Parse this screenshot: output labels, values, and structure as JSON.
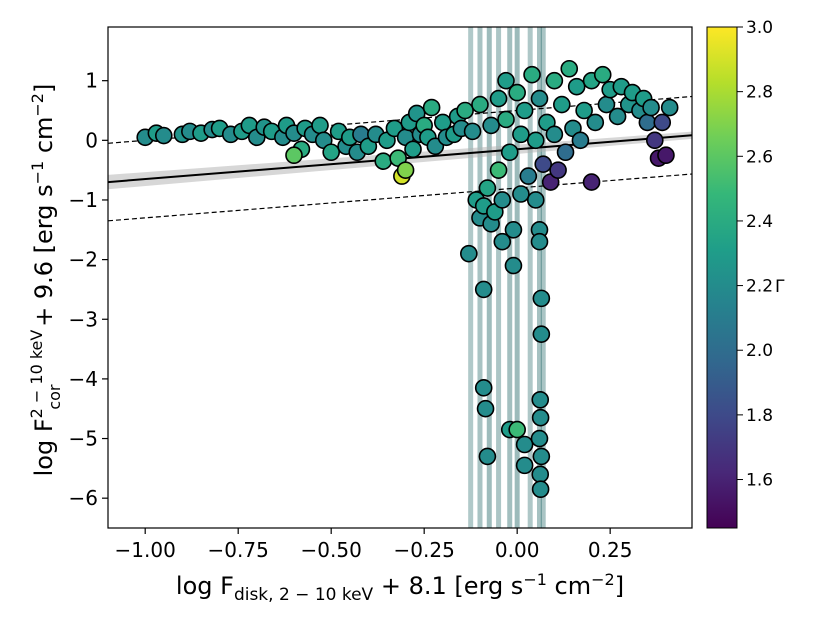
{
  "chart_data": {
    "type": "scatter",
    "xlabel": "log F_disk, 2−10 keV + 8.1  [erg s⁻¹ cm⁻²]",
    "ylabel": "log F_cor^2−10 keV + 9.6  [erg s⁻¹ cm⁻²]",
    "xlim": [
      -1.1,
      0.47
    ],
    "ylim": [
      -6.5,
      1.9
    ],
    "x_ticks": [
      -1.0,
      -0.75,
      -0.5,
      -0.25,
      0.0,
      0.25
    ],
    "x_tick_labels": [
      "−1.00",
      "−0.75",
      "−0.50",
      "−0.25",
      "0.00",
      "0.25"
    ],
    "y_ticks": [
      1,
      0,
      -1,
      -2,
      -3,
      -4,
      -5,
      -6
    ],
    "y_tick_labels": [
      "1",
      "0",
      "−1",
      "−2",
      "−3",
      "−4",
      "−5",
      "−6"
    ],
    "colorbar": {
      "label": "Γ",
      "cmap": "viridis",
      "range": [
        1.45,
        3.0
      ],
      "ticks": [
        3.0,
        2.8,
        2.6,
        2.4,
        2.2,
        2.0,
        1.8,
        1.6
      ],
      "tick_labels": [
        "3.0",
        "2.8",
        "2.6",
        "2.4",
        "2.2",
        "2.0",
        "1.8",
        "1.6"
      ],
      "stops": [
        "#440154",
        "#482878",
        "#3e4989",
        "#31688e",
        "#26828e",
        "#1f9e89",
        "#35b779",
        "#6ece58",
        "#b5de2b",
        "#fde725"
      ]
    },
    "fit_line": {
      "intercept": -0.15,
      "slope": 0.5,
      "color": "#000000"
    },
    "bound_lines": [
      {
        "intercept": 0.5,
        "slope": 0.5,
        "style": "dashed"
      },
      {
        "intercept": -0.8,
        "slope": 0.5,
        "style": "dashed"
      }
    ],
    "points": [
      {
        "x": -1.0,
        "y": 0.05,
        "g": 2.2
      },
      {
        "x": -0.97,
        "y": 0.12,
        "g": 2.3
      },
      {
        "x": -0.95,
        "y": 0.08,
        "g": 2.2
      },
      {
        "x": -0.9,
        "y": 0.1,
        "g": 2.25
      },
      {
        "x": -0.88,
        "y": 0.15,
        "g": 2.2
      },
      {
        "x": -0.85,
        "y": 0.12,
        "g": 2.3
      },
      {
        "x": -0.82,
        "y": 0.18,
        "g": 2.2
      },
      {
        "x": -0.8,
        "y": 0.2,
        "g": 2.3
      },
      {
        "x": -0.77,
        "y": 0.1,
        "g": 2.2
      },
      {
        "x": -0.74,
        "y": 0.15,
        "g": 2.3
      },
      {
        "x": -0.72,
        "y": 0.25,
        "g": 2.3
      },
      {
        "x": -0.7,
        "y": 0.05,
        "g": 2.2
      },
      {
        "x": -0.68,
        "y": 0.22,
        "g": 2.25
      },
      {
        "x": -0.66,
        "y": 0.15,
        "g": 2.3
      },
      {
        "x": -0.63,
        "y": 0.05,
        "g": 2.2
      },
      {
        "x": -0.62,
        "y": 0.25,
        "g": 2.3
      },
      {
        "x": -0.6,
        "y": 0.12,
        "g": 2.2
      },
      {
        "x": -0.58,
        "y": -0.15,
        "g": 2.4
      },
      {
        "x": -0.6,
        "y": -0.25,
        "g": 2.6
      },
      {
        "x": -0.57,
        "y": 0.2,
        "g": 2.3
      },
      {
        "x": -0.55,
        "y": 0.1,
        "g": 2.2
      },
      {
        "x": -0.53,
        "y": 0.25,
        "g": 2.3
      },
      {
        "x": -0.52,
        "y": 0.0,
        "g": 2.2
      },
      {
        "x": -0.5,
        "y": -0.2,
        "g": 2.35
      },
      {
        "x": -0.48,
        "y": 0.15,
        "g": 2.3
      },
      {
        "x": -0.46,
        "y": -0.1,
        "g": 2.2
      },
      {
        "x": -0.45,
        "y": 0.05,
        "g": 2.3
      },
      {
        "x": -0.43,
        "y": -0.2,
        "g": 2.2
      },
      {
        "x": -0.42,
        "y": 0.1,
        "g": 2.1
      },
      {
        "x": -0.4,
        "y": -0.1,
        "g": 2.3
      },
      {
        "x": -0.38,
        "y": 0.1,
        "g": 2.2
      },
      {
        "x": -0.36,
        "y": -0.35,
        "g": 2.4
      },
      {
        "x": -0.35,
        "y": 0.0,
        "g": 2.3
      },
      {
        "x": -0.33,
        "y": 0.2,
        "g": 2.3
      },
      {
        "x": -0.32,
        "y": -0.3,
        "g": 2.5
      },
      {
        "x": -0.31,
        "y": -0.6,
        "g": 2.9
      },
      {
        "x": -0.3,
        "y": -0.5,
        "g": 2.7
      },
      {
        "x": -0.3,
        "y": 0.05,
        "g": 2.2
      },
      {
        "x": -0.29,
        "y": 0.3,
        "g": 2.3
      },
      {
        "x": -0.28,
        "y": -0.15,
        "g": 2.3
      },
      {
        "x": -0.27,
        "y": 0.45,
        "g": 2.25
      },
      {
        "x": -0.26,
        "y": 0.1,
        "g": 2.2
      },
      {
        "x": -0.25,
        "y": 0.25,
        "g": 2.4
      },
      {
        "x": -0.24,
        "y": 0.05,
        "g": 2.3
      },
      {
        "x": -0.23,
        "y": 0.55,
        "g": 2.4
      },
      {
        "x": -0.22,
        "y": -0.1,
        "g": 2.2
      },
      {
        "x": -0.2,
        "y": 0.3,
        "g": 2.3
      },
      {
        "x": -0.19,
        "y": 0.05,
        "g": 2.2
      },
      {
        "x": -0.17,
        "y": 0.1,
        "g": 2.3
      },
      {
        "x": -0.16,
        "y": 0.4,
        "g": 2.3
      },
      {
        "x": -0.15,
        "y": 0.2,
        "g": 2.2
      },
      {
        "x": -0.14,
        "y": 0.5,
        "g": 2.4
      },
      {
        "x": -0.12,
        "y": 0.15,
        "g": 2.2
      },
      {
        "x": -0.11,
        "y": -1.0,
        "g": 2.3
      },
      {
        "x": -0.1,
        "y": -1.3,
        "g": 2.2
      },
      {
        "x": -0.1,
        "y": 0.6,
        "g": 2.4
      },
      {
        "x": -0.09,
        "y": -1.1,
        "g": 2.3
      },
      {
        "x": -0.08,
        "y": -0.8,
        "g": 2.35
      },
      {
        "x": -0.07,
        "y": 0.25,
        "g": 2.2
      },
      {
        "x": -0.07,
        "y": -1.4,
        "g": 2.2
      },
      {
        "x": -0.06,
        "y": -1.2,
        "g": 2.3
      },
      {
        "x": -0.05,
        "y": 0.7,
        "g": 2.3
      },
      {
        "x": -0.05,
        "y": -0.5,
        "g": 2.5
      },
      {
        "x": -0.04,
        "y": -1.0,
        "g": 2.2
      },
      {
        "x": -0.03,
        "y": 1.0,
        "g": 2.3
      },
      {
        "x": -0.03,
        "y": 0.35,
        "g": 2.4
      },
      {
        "x": -0.02,
        "y": -0.2,
        "g": 2.3
      },
      {
        "x": -0.01,
        "y": -1.5,
        "g": 2.2
      },
      {
        "x": 0.0,
        "y": 0.8,
        "g": 2.4
      },
      {
        "x": 0.01,
        "y": 0.1,
        "g": 2.3
      },
      {
        "x": 0.01,
        "y": -0.9,
        "g": 2.2
      },
      {
        "x": 0.02,
        "y": 0.5,
        "g": 2.3
      },
      {
        "x": 0.03,
        "y": -0.6,
        "g": 2.1
      },
      {
        "x": 0.04,
        "y": 1.1,
        "g": 2.4
      },
      {
        "x": 0.05,
        "y": -1.0,
        "g": 2.2
      },
      {
        "x": 0.05,
        "y": 0.0,
        "g": 2.3
      },
      {
        "x": 0.06,
        "y": 0.7,
        "g": 2.2
      },
      {
        "x": 0.07,
        "y": -0.4,
        "g": 1.8
      },
      {
        "x": 0.08,
        "y": 0.3,
        "g": 2.3
      },
      {
        "x": 0.09,
        "y": -0.7,
        "g": 1.6
      },
      {
        "x": 0.1,
        "y": 1.0,
        "g": 2.4
      },
      {
        "x": 0.1,
        "y": 0.1,
        "g": 2.2
      },
      {
        "x": 0.11,
        "y": -0.5,
        "g": 1.7
      },
      {
        "x": 0.12,
        "y": 0.6,
        "g": 2.3
      },
      {
        "x": 0.13,
        "y": -0.2,
        "g": 2.0
      },
      {
        "x": 0.14,
        "y": 1.2,
        "g": 2.4
      },
      {
        "x": 0.15,
        "y": 0.2,
        "g": 2.2
      },
      {
        "x": 0.16,
        "y": 0.9,
        "g": 2.3
      },
      {
        "x": 0.17,
        "y": 0.0,
        "g": 2.1
      },
      {
        "x": 0.18,
        "y": 0.5,
        "g": 2.3
      },
      {
        "x": 0.2,
        "y": -0.7,
        "g": 1.6
      },
      {
        "x": 0.2,
        "y": 1.0,
        "g": 2.35
      },
      {
        "x": 0.21,
        "y": 0.3,
        "g": 2.2
      },
      {
        "x": 0.23,
        "y": 1.1,
        "g": 2.4
      },
      {
        "x": 0.24,
        "y": 0.6,
        "g": 2.2
      },
      {
        "x": 0.25,
        "y": 0.85,
        "g": 2.3
      },
      {
        "x": 0.27,
        "y": 0.4,
        "g": 2.2
      },
      {
        "x": 0.28,
        "y": 0.9,
        "g": 2.3
      },
      {
        "x": 0.3,
        "y": 0.6,
        "g": 2.25
      },
      {
        "x": 0.31,
        "y": 0.8,
        "g": 2.3
      },
      {
        "x": 0.33,
        "y": 0.5,
        "g": 2.2
      },
      {
        "x": 0.34,
        "y": 0.7,
        "g": 2.3
      },
      {
        "x": 0.35,
        "y": 0.3,
        "g": 2.0
      },
      {
        "x": 0.36,
        "y": 0.55,
        "g": 2.2
      },
      {
        "x": 0.37,
        "y": 0.0,
        "g": 1.7
      },
      {
        "x": 0.38,
        "y": -0.3,
        "g": 1.55
      },
      {
        "x": 0.39,
        "y": 0.3,
        "g": 1.8
      },
      {
        "x": 0.4,
        "y": -0.25,
        "g": 1.55
      },
      {
        "x": 0.41,
        "y": 0.55,
        "g": 2.2
      },
      {
        "x": -0.09,
        "y": -2.5,
        "g": 2.2
      },
      {
        "x": -0.09,
        "y": -4.15,
        "g": 2.2
      },
      {
        "x": -0.085,
        "y": -4.5,
        "g": 2.2
      },
      {
        "x": -0.08,
        "y": -5.3,
        "g": 2.2
      },
      {
        "x": -0.13,
        "y": -1.9,
        "g": 2.2
      },
      {
        "x": -0.04,
        "y": -1.7,
        "g": 2.2
      },
      {
        "x": -0.01,
        "y": -2.1,
        "g": 2.2
      },
      {
        "x": -0.02,
        "y": -4.85,
        "g": 2.3
      },
      {
        "x": 0.0,
        "y": -4.85,
        "g": 2.5
      },
      {
        "x": 0.02,
        "y": -5.1,
        "g": 2.2
      },
      {
        "x": 0.02,
        "y": -5.45,
        "g": 2.2
      },
      {
        "x": 0.06,
        "y": -1.5,
        "g": 2.2
      },
      {
        "x": 0.06,
        "y": -1.7,
        "g": 2.2
      },
      {
        "x": 0.065,
        "y": -2.65,
        "g": 2.2
      },
      {
        "x": 0.065,
        "y": -3.25,
        "g": 2.2
      },
      {
        "x": 0.062,
        "y": -4.35,
        "g": 2.2
      },
      {
        "x": 0.063,
        "y": -4.65,
        "g": 2.2
      },
      {
        "x": 0.06,
        "y": -5.0,
        "g": 2.2
      },
      {
        "x": 0.065,
        "y": -5.3,
        "g": 2.2
      },
      {
        "x": 0.062,
        "y": -5.6,
        "g": 2.2
      },
      {
        "x": 0.063,
        "y": -5.85,
        "g": 2.2
      }
    ]
  }
}
